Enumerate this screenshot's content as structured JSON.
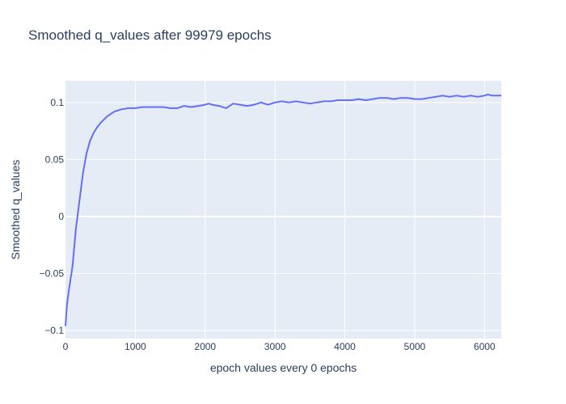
{
  "chart_data": {
    "type": "line",
    "title": "Smoothed q_values after 99979 epochs",
    "xlabel": "epoch values every 0 epochs",
    "ylabel": "Smoothed q_values",
    "xlim": [
      0,
      6240
    ],
    "ylim": [
      -0.107,
      0.119
    ],
    "x_ticks": [
      0,
      1000,
      2000,
      3000,
      4000,
      5000,
      6000
    ],
    "x_tick_labels": [
      "0",
      "1000",
      "2000",
      "3000",
      "4000",
      "5000",
      "6000"
    ],
    "y_ticks": [
      -0.1,
      -0.05,
      0,
      0.05,
      0.1
    ],
    "y_tick_labels": [
      "−0.1",
      "−0.05",
      "0",
      "0.05",
      "0.1"
    ],
    "grid": true,
    "legend": "none",
    "colors": {
      "line": "#636efa",
      "plot_bg": "#e5ecf6",
      "grid": "#ffffff",
      "text": "#2a3f5f"
    },
    "series": [
      {
        "x": [
          0,
          20,
          50,
          100,
          150,
          200,
          250,
          300,
          350,
          400,
          450,
          500,
          550,
          600,
          700,
          800,
          900,
          1000,
          1100,
          1200,
          1300,
          1400,
          1500,
          1600,
          1700,
          1800,
          1900,
          2000,
          2050,
          2100,
          2200,
          2300,
          2400,
          2500,
          2600,
          2700,
          2800,
          2900,
          3000,
          3100,
          3200,
          3300,
          3400,
          3500,
          3600,
          3700,
          3800,
          3900,
          4000,
          4100,
          4200,
          4300,
          4400,
          4500,
          4600,
          4700,
          4800,
          4900,
          5000,
          5100,
          5200,
          5300,
          5400,
          5500,
          5600,
          5700,
          5800,
          5900,
          6000,
          6050,
          6100,
          6200,
          6240
        ],
        "y": [
          -0.096,
          -0.078,
          -0.064,
          -0.044,
          -0.01,
          0.014,
          0.038,
          0.055,
          0.066,
          0.073,
          0.078,
          0.082,
          0.085,
          0.088,
          0.092,
          0.094,
          0.095,
          0.095,
          0.096,
          0.096,
          0.096,
          0.096,
          0.095,
          0.095,
          0.097,
          0.096,
          0.097,
          0.098,
          0.099,
          0.098,
          0.097,
          0.095,
          0.099,
          0.098,
          0.097,
          0.098,
          0.1,
          0.098,
          0.1,
          0.101,
          0.1,
          0.101,
          0.1,
          0.099,
          0.1,
          0.101,
          0.101,
          0.102,
          0.102,
          0.102,
          0.103,
          0.102,
          0.103,
          0.104,
          0.104,
          0.103,
          0.104,
          0.104,
          0.103,
          0.103,
          0.104,
          0.105,
          0.106,
          0.105,
          0.106,
          0.105,
          0.106,
          0.105,
          0.106,
          0.107,
          0.106,
          0.106,
          0.106
        ]
      }
    ]
  }
}
